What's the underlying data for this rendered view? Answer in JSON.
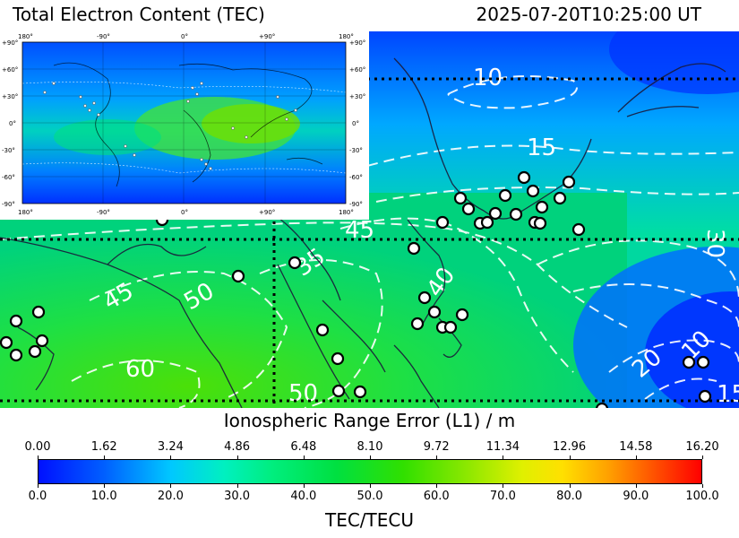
{
  "header": {
    "title": "Total Electron Content (TEC)",
    "timestamp": "2025-07-20T10:25:00 UT"
  },
  "map": {
    "type": "ionospheric TEC contour map",
    "region": "East and South Asia / Western Pacific",
    "contour_labels": [
      "10",
      "15",
      "45",
      "30",
      "40",
      "35",
      "45",
      "50",
      "60",
      "50",
      "20",
      "10",
      "15"
    ],
    "colors": {
      "low": "#0010ff",
      "mid": "#00e040",
      "high": "#ff0000",
      "contour": "#ffffff",
      "station": "#ffffff"
    }
  },
  "inset": {
    "lon_ticks": [
      "180°",
      "-90°",
      "0°",
      "+90°",
      "180°"
    ],
    "lat_ticks": [
      "+90°",
      "+60°",
      "+30°",
      "0°",
      "-30°",
      "-60°",
      "-90°"
    ]
  },
  "colorbar": {
    "upper_title": "Ionospheric Range Error (L1) / m",
    "upper_ticks": [
      "0.00",
      "1.62",
      "3.24",
      "4.86",
      "6.48",
      "8.10",
      "9.72",
      "11.34",
      "12.96",
      "14.58",
      "16.20"
    ],
    "lower_ticks": [
      "0.0",
      "10.0",
      "20.0",
      "30.0",
      "40.0",
      "50.0",
      "60.0",
      "70.0",
      "80.0",
      "90.0",
      "100.0"
    ],
    "lower_title": "TEC/TECU"
  }
}
